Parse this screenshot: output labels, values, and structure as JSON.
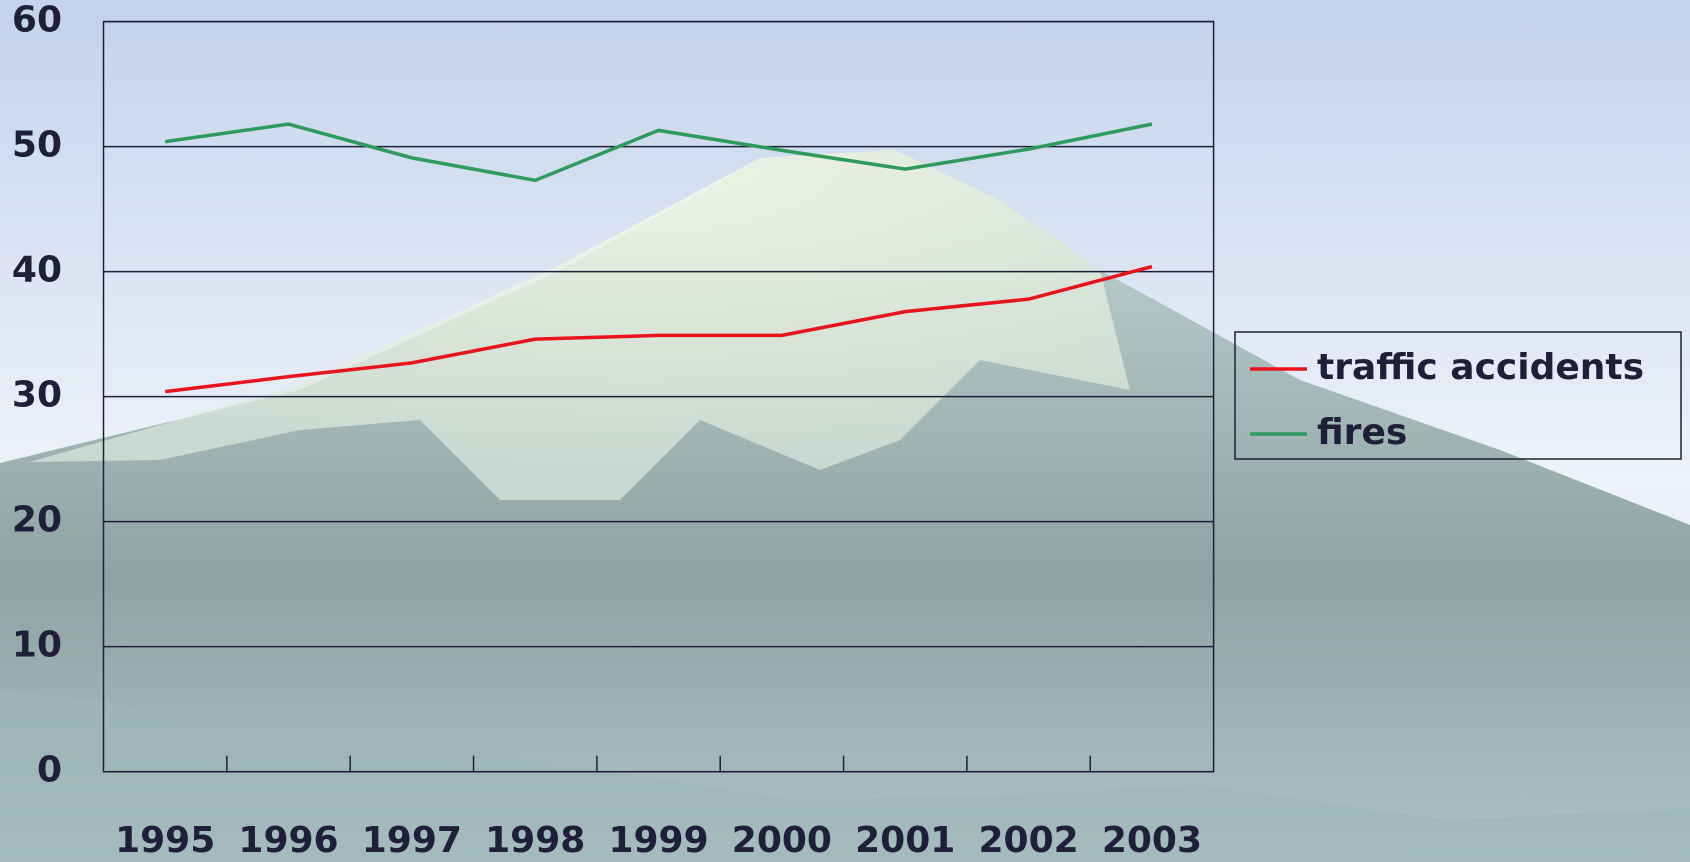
{
  "chart_data": {
    "type": "line",
    "categories": [
      "1995",
      "1996",
      "1997",
      "1998",
      "1999",
      "2000",
      "2001",
      "2002",
      "2003"
    ],
    "series": [
      {
        "name": "traffic accidents",
        "color": "#e8141c",
        "values": [
          30.4,
          31.6,
          32.7,
          34.6,
          34.9,
          34.9,
          36.8,
          37.8,
          40.4
        ]
      },
      {
        "name": "fires",
        "color": "#2e9a5c",
        "values": [
          50.4,
          51.8,
          49.1,
          47.3,
          51.3,
          49.7,
          48.2,
          49.8,
          51.8
        ]
      }
    ],
    "ylim": [
      0,
      60
    ],
    "yticks": [
      0,
      10,
      20,
      30,
      40,
      50,
      60
    ],
    "grid": true,
    "legend": "right"
  }
}
